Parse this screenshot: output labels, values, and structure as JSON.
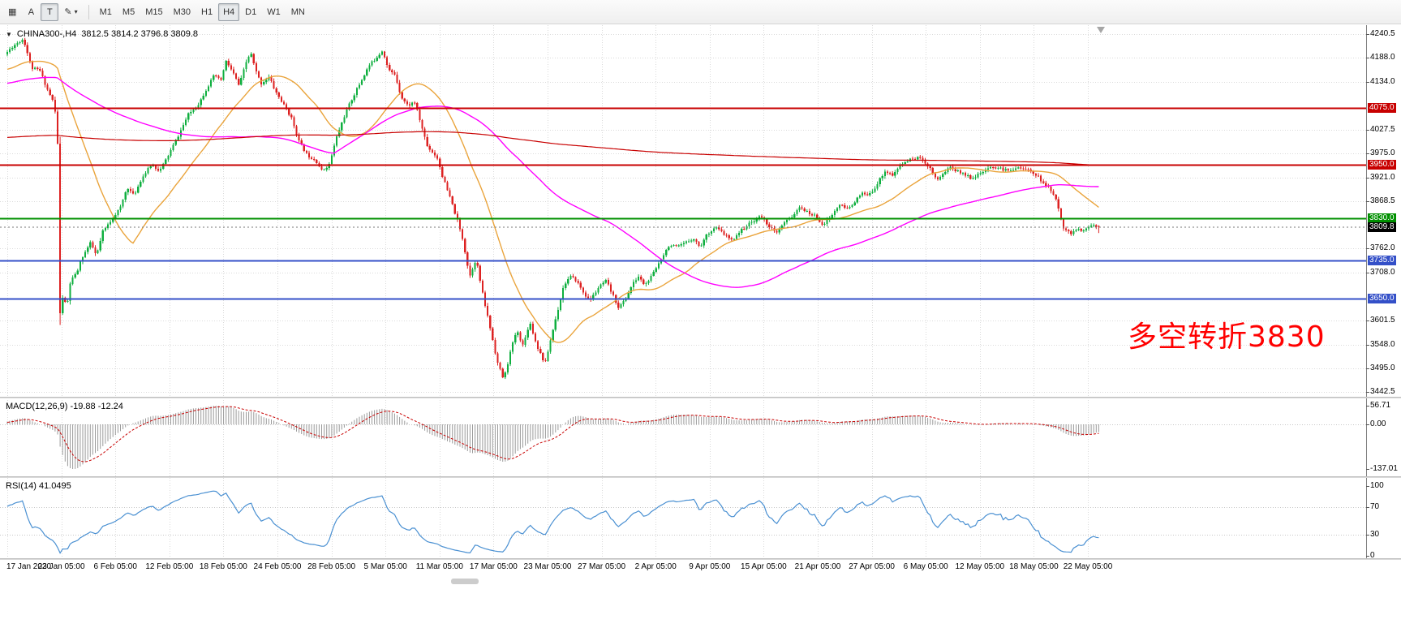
{
  "toolbar": {
    "chart_icon": "▦",
    "text_tool_label": "A",
    "crosshair_tool_label": "T",
    "draw_tool_glyph": "✎",
    "caret_glyph": "▾",
    "timeframes": [
      "M1",
      "M5",
      "M15",
      "M30",
      "H1",
      "H4",
      "D1",
      "W1",
      "MN"
    ],
    "selected_timeframe": "H4"
  },
  "chart": {
    "collapse_glyph": "▼",
    "symbol_title": "CHINA300-,H4",
    "ohlc_text": "3812.5 3814.2 3796.8 3809.8",
    "annotation": "多空转折3830",
    "annotation_color": "#ff0000"
  },
  "indicators": {
    "macd_title": "MACD(12,26,9) -19.88 -12.24",
    "rsi_title": "RSI(14) 41.0495"
  },
  "axis": {
    "main_ticks": [
      {
        "v": "4240.5",
        "p": 4240.5
      },
      {
        "v": "4188.0",
        "p": 4188.0
      },
      {
        "v": "4134.0",
        "p": 4134.0
      },
      {
        "v": "4027.5",
        "p": 4027.5
      },
      {
        "v": "3975.0",
        "p": 3975.0
      },
      {
        "v": "3921.0",
        "p": 3921.0
      },
      {
        "v": "3868.5",
        "p": 3868.5
      },
      {
        "v": "3762.0",
        "p": 3762.0
      },
      {
        "v": "3708.0",
        "p": 3708.0
      },
      {
        "v": "3601.5",
        "p": 3601.5
      },
      {
        "v": "3548.0",
        "p": 3548.0
      },
      {
        "v": "3495.0",
        "p": 3495.0
      },
      {
        "v": "3442.5",
        "p": 3442.5
      }
    ],
    "price_labels": [
      {
        "v": "4075.0",
        "p": 4075.0,
        "bg": "#c80000",
        "name": "level-label-4075"
      },
      {
        "v": "3950.0",
        "p": 3950.0,
        "bg": "#c80000",
        "name": "level-label-3950"
      },
      {
        "v": "3830.0",
        "p": 3830.0,
        "bg": "#009000",
        "name": "level-label-3830"
      },
      {
        "v": "3809.8",
        "p": 3809.8,
        "bg": "#000000",
        "name": "current-price-label"
      },
      {
        "v": "3735.0",
        "p": 3735.0,
        "bg": "#3450c8",
        "name": "level-label-3735"
      },
      {
        "v": "3650.0",
        "p": 3650.0,
        "bg": "#3450c8",
        "name": "level-label-3650"
      }
    ],
    "macd_ticks": [
      {
        "v": "56.71",
        "val": 56.71
      },
      {
        "v": "0.00",
        "val": 0
      },
      {
        "v": "-137.01",
        "val": -137.01
      }
    ],
    "rsi_ticks": [
      {
        "v": "100",
        "val": 100
      },
      {
        "v": "70",
        "val": 70
      },
      {
        "v": "30",
        "val": 30
      },
      {
        "v": "0",
        "val": 0
      }
    ],
    "time_labels": [
      "17 Jan 2020",
      "23 Jan 05:00",
      "6 Feb 05:00",
      "12 Feb 05:00",
      "18 Feb 05:00",
      "24 Feb 05:00",
      "28 Feb 05:00",
      "5 Mar 05:00",
      "11 Mar 05:00",
      "17 Mar 05:00",
      "23 Mar 05:00",
      "27 Mar 05:00",
      "2 Apr 05:00",
      "9 Apr 05:00",
      "15 Apr 05:00",
      "21 Apr 05:00",
      "27 Apr 05:00",
      "6 May 05:00",
      "12 May 05:00",
      "18 May 05:00",
      "22 May 05:00"
    ]
  },
  "chart_data": {
    "type": "candlestick",
    "symbol": "CHINA300-",
    "period": "H4",
    "visible_range": {
      "price_min": 3442.5,
      "price_max": 4240.5,
      "time_start": "17 Jan 2020",
      "time_end": "22 May 2020"
    },
    "last_candle": {
      "open": 3812.5,
      "high": 3814.2,
      "low": 3796.8,
      "close": 3809.8
    },
    "up_color": "#0faf3f",
    "down_color": "#dd2222",
    "price_path": [
      [
        9,
        4195
      ],
      [
        20,
        4215
      ],
      [
        32,
        4230
      ],
      [
        42,
        4165
      ],
      [
        52,
        4160
      ],
      [
        62,
        4115
      ],
      [
        70,
        4085
      ],
      [
        74,
        4010
      ],
      [
        77,
        3605
      ],
      [
        81,
        3665
      ],
      [
        85,
        3625
      ],
      [
        90,
        3690
      ],
      [
        97,
        3705
      ],
      [
        105,
        3745
      ],
      [
        115,
        3775
      ],
      [
        122,
        3745
      ],
      [
        130,
        3800
      ],
      [
        142,
        3830
      ],
      [
        152,
        3855
      ],
      [
        160,
        3900
      ],
      [
        168,
        3880
      ],
      [
        178,
        3920
      ],
      [
        190,
        3950
      ],
      [
        200,
        3935
      ],
      [
        209,
        3965
      ],
      [
        222,
        4010
      ],
      [
        235,
        4060
      ],
      [
        248,
        4085
      ],
      [
        258,
        4120
      ],
      [
        268,
        4150
      ],
      [
        275,
        4135
      ],
      [
        282,
        4180
      ],
      [
        290,
        4155
      ],
      [
        298,
        4125
      ],
      [
        306,
        4175
      ],
      [
        312,
        4200
      ],
      [
        318,
        4160
      ],
      [
        325,
        4130
      ],
      [
        335,
        4145
      ],
      [
        342,
        4115
      ],
      [
        352,
        4085
      ],
      [
        362,
        4055
      ],
      [
        372,
        4000
      ],
      [
        382,
        3970
      ],
      [
        392,
        3960
      ],
      [
        400,
        3935
      ],
      [
        409,
        3950
      ],
      [
        418,
        4010
      ],
      [
        428,
        4060
      ],
      [
        438,
        4100
      ],
      [
        448,
        4135
      ],
      [
        458,
        4170
      ],
      [
        468,
        4190
      ],
      [
        475,
        4205
      ],
      [
        482,
        4160
      ],
      [
        490,
        4150
      ],
      [
        498,
        4100
      ],
      [
        506,
        4080
      ],
      [
        514,
        4090
      ],
      [
        522,
        4040
      ],
      [
        530,
        3990
      ],
      [
        542,
        3965
      ],
      [
        550,
        3915
      ],
      [
        558,
        3875
      ],
      [
        566,
        3830
      ],
      [
        574,
        3780
      ],
      [
        582,
        3700
      ],
      [
        590,
        3740
      ],
      [
        598,
        3660
      ],
      [
        608,
        3580
      ],
      [
        616,
        3510
      ],
      [
        624,
        3470
      ],
      [
        632,
        3530
      ],
      [
        640,
        3580
      ],
      [
        648,
        3545
      ],
      [
        656,
        3600
      ],
      [
        664,
        3550
      ],
      [
        675,
        3505
      ],
      [
        682,
        3560
      ],
      [
        690,
        3620
      ],
      [
        698,
        3680
      ],
      [
        706,
        3700
      ],
      [
        714,
        3690
      ],
      [
        722,
        3665
      ],
      [
        730,
        3645
      ],
      [
        741,
        3675
      ],
      [
        750,
        3690
      ],
      [
        758,
        3660
      ],
      [
        766,
        3630
      ],
      [
        774,
        3650
      ],
      [
        782,
        3680
      ],
      [
        790,
        3700
      ],
      [
        798,
        3680
      ],
      [
        808,
        3705
      ],
      [
        818,
        3740
      ],
      [
        828,
        3770
      ],
      [
        838,
        3765
      ],
      [
        848,
        3775
      ],
      [
        858,
        3785
      ],
      [
        866,
        3765
      ],
      [
        875,
        3795
      ],
      [
        885,
        3810
      ],
      [
        895,
        3795
      ],
      [
        905,
        3780
      ],
      [
        915,
        3800
      ],
      [
        925,
        3815
      ],
      [
        941,
        3835
      ],
      [
        950,
        3815
      ],
      [
        960,
        3795
      ],
      [
        970,
        3820
      ],
      [
        980,
        3835
      ],
      [
        990,
        3855
      ],
      [
        1000,
        3840
      ],
      [
        1008,
        3835
      ],
      [
        1018,
        3815
      ],
      [
        1028,
        3835
      ],
      [
        1038,
        3860
      ],
      [
        1048,
        3850
      ],
      [
        1058,
        3870
      ],
      [
        1066,
        3885
      ],
      [
        1074,
        3880
      ],
      [
        1084,
        3905
      ],
      [
        1094,
        3935
      ],
      [
        1104,
        3925
      ],
      [
        1114,
        3950
      ],
      [
        1124,
        3960
      ],
      [
        1134,
        3965
      ],
      [
        1141,
        3960
      ],
      [
        1150,
        3940
      ],
      [
        1158,
        3915
      ],
      [
        1166,
        3930
      ],
      [
        1174,
        3945
      ],
      [
        1182,
        3935
      ],
      [
        1190,
        3930
      ],
      [
        1200,
        3920
      ],
      [
        1207,
        3925
      ],
      [
        1217,
        3935
      ],
      [
        1227,
        3945
      ],
      [
        1237,
        3940
      ],
      [
        1247,
        3935
      ],
      [
        1257,
        3945
      ],
      [
        1264,
        3940
      ],
      [
        1274,
        3935
      ],
      [
        1282,
        3925
      ],
      [
        1290,
        3905
      ],
      [
        1298,
        3895
      ],
      [
        1306,
        3865
      ],
      [
        1314,
        3810
      ],
      [
        1322,
        3795
      ],
      [
        1330,
        3805
      ],
      [
        1338,
        3800
      ],
      [
        1348,
        3815
      ],
      [
        1357,
        3810
      ]
    ],
    "levels": [
      {
        "price": 4075.0,
        "color": "#c80000"
      },
      {
        "price": 3950.0,
        "color": "#c80000"
      },
      {
        "price": 3830.0,
        "color": "#009000"
      },
      {
        "price": 3735.0,
        "color": "#3450c8"
      },
      {
        "price": 3650.0,
        "color": "#3450c8"
      }
    ],
    "moving_averages": [
      {
        "name": "fast-ma",
        "period": 30,
        "color": "#eaa43c",
        "width": 1.4
      },
      {
        "name": "medium-ma",
        "period": 110,
        "color": "#ff00ff",
        "width": 1.4
      },
      {
        "name": "slow-ma",
        "period": 600,
        "color": "#c80000",
        "width": 1.2
      }
    ],
    "macd": {
      "fast": 12,
      "slow": 26,
      "signal": 9,
      "current_macd": -19.88,
      "current_signal": -12.24,
      "scale_max": 56.71,
      "scale_min": -137.01
    },
    "rsi": {
      "period": 14,
      "current": 41.0495,
      "levels": [
        70,
        30
      ]
    }
  }
}
